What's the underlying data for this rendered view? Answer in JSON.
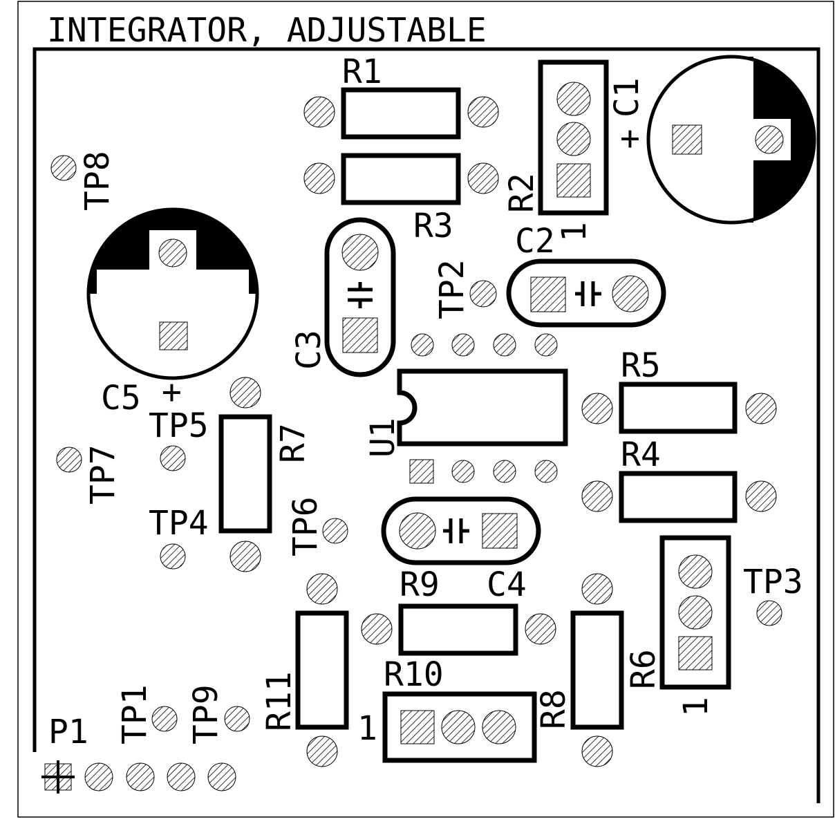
{
  "title": "INTEGRATOR, ADJUSTABLE",
  "resistors": {
    "r1": "R1",
    "r2": "R2",
    "r3": "R3",
    "r4": "R4",
    "r5": "R5",
    "r6": "R6",
    "r7": "R7",
    "r8": "R8",
    "r9": "R9",
    "r10": "R10",
    "r11": "R11"
  },
  "capacitors": {
    "c1": "C1",
    "c2": "C2",
    "c3": "C3",
    "c4": "C4",
    "c5": "C5"
  },
  "ic": {
    "u1": "U1"
  },
  "connector": {
    "p1": "P1"
  },
  "test_points": {
    "tp1": "TP1",
    "tp2": "TP2",
    "tp3": "TP3",
    "tp4": "TP4",
    "tp5": "TP5",
    "tp6": "TP6",
    "tp7": "TP7",
    "tp8": "TP8",
    "tp9": "TP9"
  },
  "marks": {
    "plus_c1": "+",
    "plus_c5": "+",
    "pin1_r2": "1",
    "pin1_r6": "1",
    "pin1_r10": "1"
  }
}
